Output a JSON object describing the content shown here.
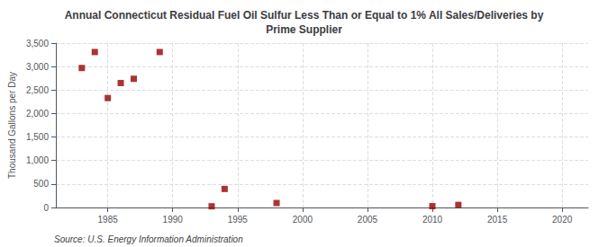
{
  "chart_data": {
    "type": "scatter",
    "title": "Annual Connecticut Residual Fuel Oil Sulfur Less Than or Equal to 1% All Sales/Deliveries by\nPrime Supplier",
    "y_label": "Thousand Gallons per Day",
    "annotations": [
      "Source: U.S. Energy Information Administration"
    ],
    "x": [
      1983,
      1984,
      1985,
      1986,
      1987,
      1989,
      1993,
      1994,
      1998,
      2010,
      2012
    ],
    "values": [
      2970,
      3310,
      2330,
      2650,
      2740,
      3310,
      25,
      395,
      95,
      28,
      55
    ],
    "color": "#990000",
    "marker": "square",
    "xlim": [
      1981,
      2022
    ],
    "xticks": [
      1985,
      1990,
      1995,
      2000,
      2005,
      2010,
      2015,
      2020
    ],
    "ylim": [
      0,
      3500
    ],
    "yticks": [
      0,
      500,
      {
        "value": 1000,
        "label": "1,000"
      },
      {
        "value": 1500,
        "label": "1,500"
      },
      {
        "value": 2000,
        "label": "2,000"
      },
      {
        "value": 2500,
        "label": "2,500"
      },
      {
        "value": 3000,
        "label": "3,000"
      },
      {
        "value": 3500,
        "label": "3,500"
      }
    ],
    "grid": true
  }
}
